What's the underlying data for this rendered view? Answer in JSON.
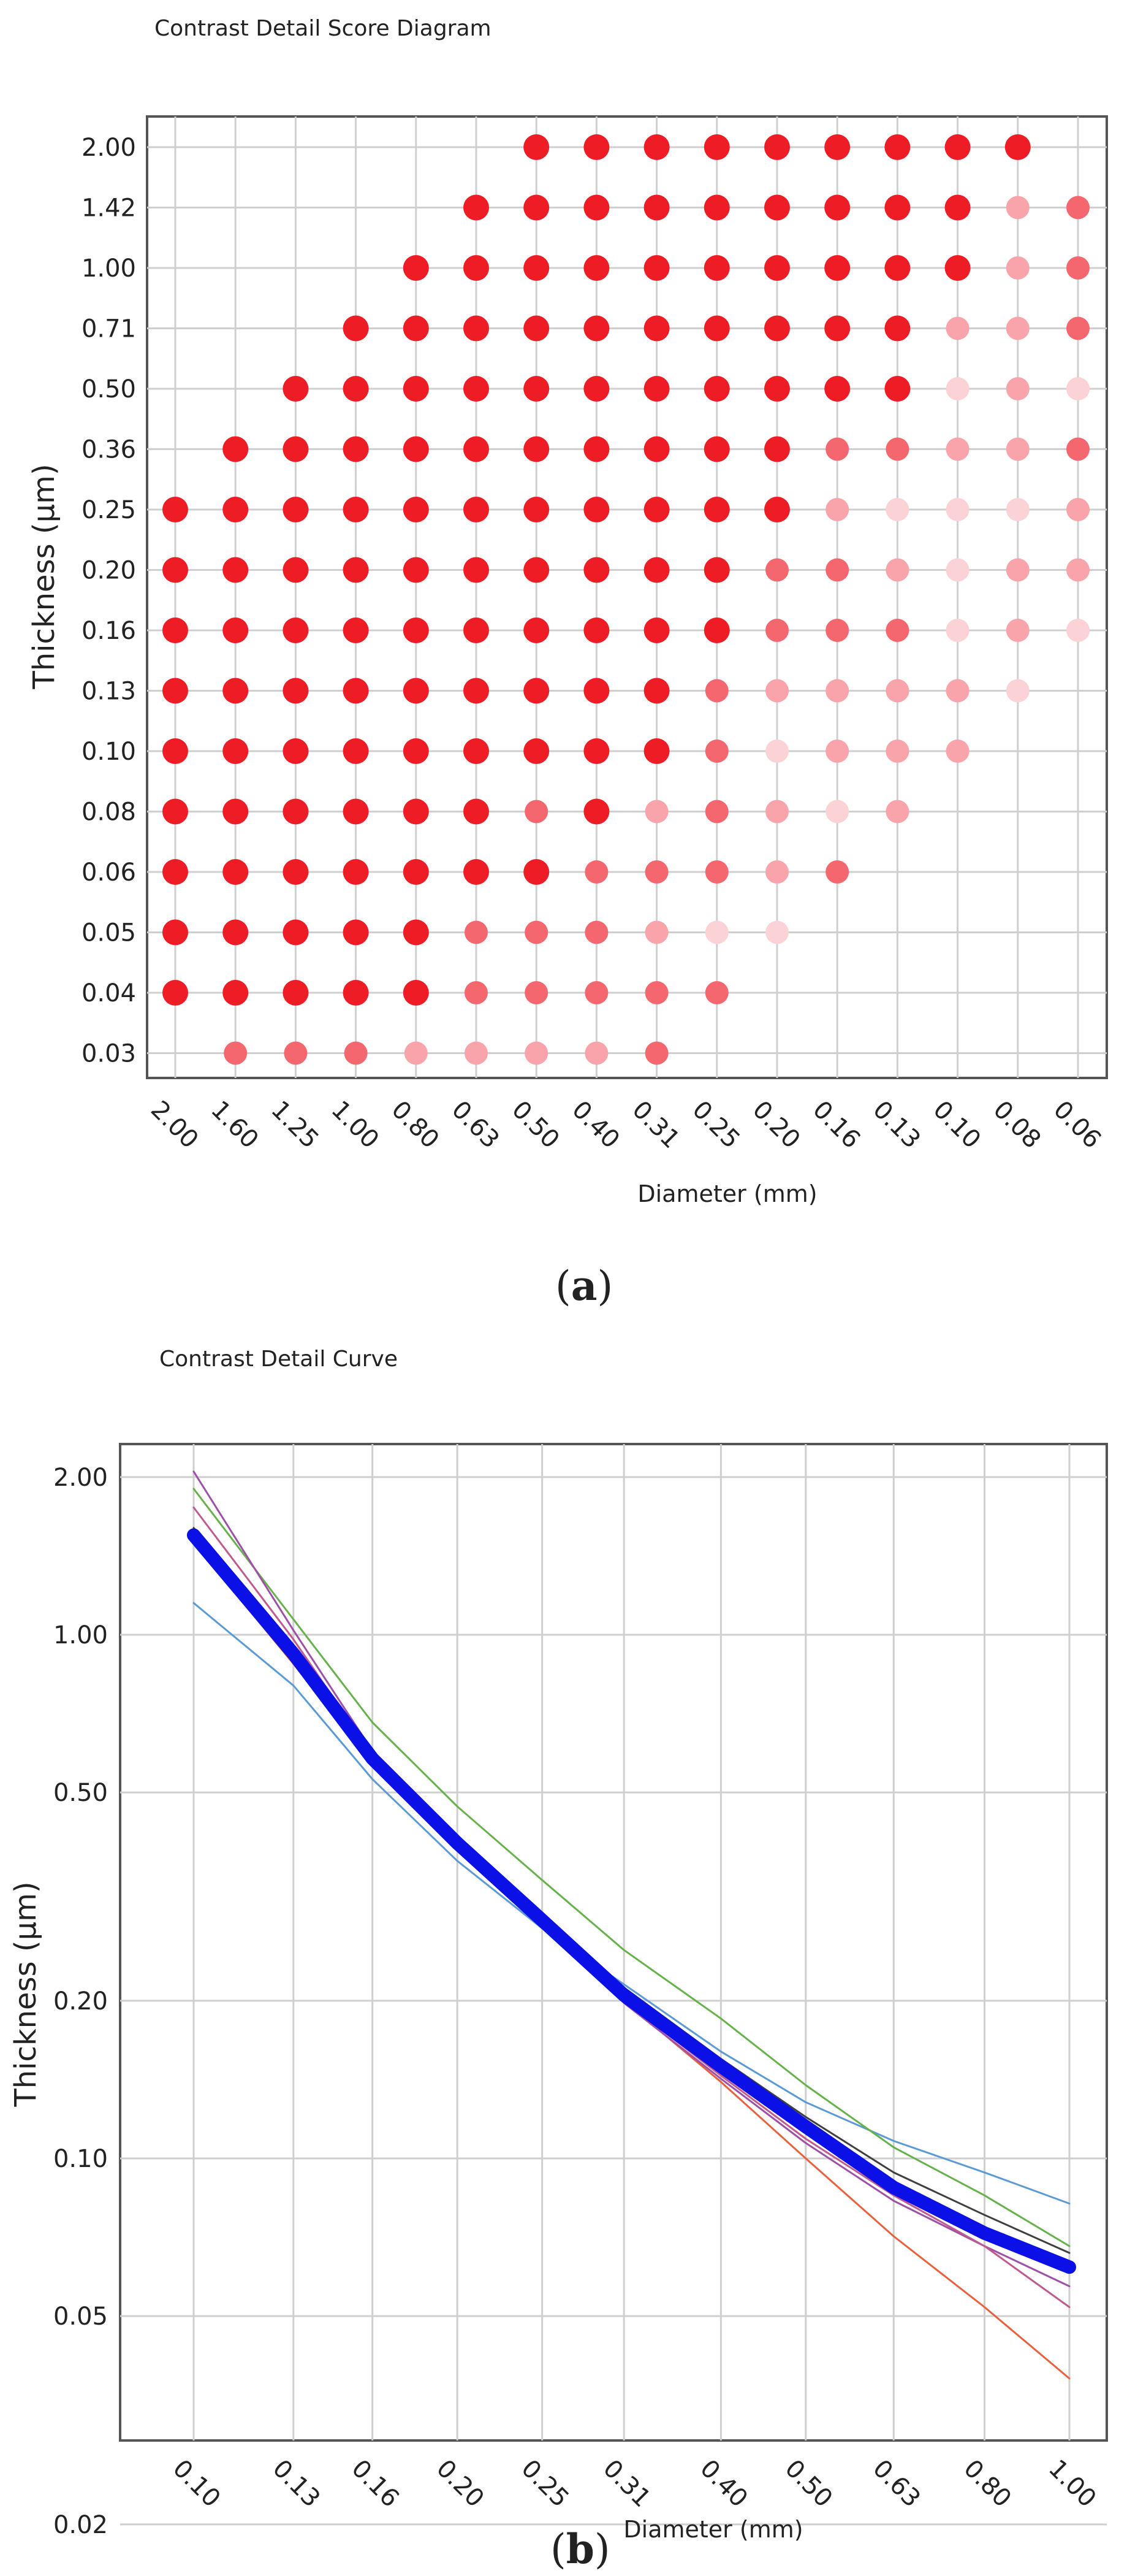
{
  "chart_data": [
    {
      "type": "scatter",
      "panel": "a",
      "title": "Contrast Detail Score Diagram",
      "xlabel": "Diameter (mm)",
      "ylabel": "Thickness (µm)",
      "x_ticks": [
        "2.00",
        "1.60",
        "1.25",
        "1.00",
        "0.80",
        "0.63",
        "0.50",
        "0.40",
        "0.31",
        "0.25",
        "0.20",
        "0.16",
        "0.13",
        "0.10",
        "0.08",
        "0.06"
      ],
      "y_ticks": [
        "2.00",
        "1.42",
        "1.00",
        "0.71",
        "0.50",
        "0.36",
        "0.25",
        "0.20",
        "0.16",
        "0.13",
        "0.10",
        "0.08",
        "0.06",
        "0.05",
        "0.04",
        "0.03"
      ],
      "grid": true,
      "legend": "none",
      "cell_value_meaning": "0 = empty, 1 = faint pink, 2 = light pink, 3 = medium red, 4 = full red",
      "colors": {
        "1": "#fbd2d6",
        "2": "#f9a3aa",
        "3": "#f4676f",
        "4": "#ee1c25"
      },
      "grid_values": [
        [
          0,
          0,
          0,
          0,
          0,
          0,
          4,
          4,
          4,
          4,
          4,
          4,
          4,
          4,
          4,
          0
        ],
        [
          0,
          0,
          0,
          0,
          0,
          4,
          4,
          4,
          4,
          4,
          4,
          4,
          4,
          4,
          2,
          3
        ],
        [
          0,
          0,
          0,
          0,
          4,
          4,
          4,
          4,
          4,
          4,
          4,
          4,
          4,
          4,
          2,
          3
        ],
        [
          0,
          0,
          0,
          4,
          4,
          4,
          4,
          4,
          4,
          4,
          4,
          4,
          4,
          2,
          2,
          3
        ],
        [
          0,
          0,
          4,
          4,
          4,
          4,
          4,
          4,
          4,
          4,
          4,
          4,
          4,
          1,
          2,
          1
        ],
        [
          0,
          4,
          4,
          4,
          4,
          4,
          4,
          4,
          4,
          4,
          4,
          3,
          3,
          2,
          2,
          3
        ],
        [
          4,
          4,
          4,
          4,
          4,
          4,
          4,
          4,
          4,
          4,
          4,
          2,
          1,
          1,
          1,
          2
        ],
        [
          4,
          4,
          4,
          4,
          4,
          4,
          4,
          4,
          4,
          4,
          3,
          3,
          2,
          1,
          2,
          2
        ],
        [
          4,
          4,
          4,
          4,
          4,
          4,
          4,
          4,
          4,
          4,
          3,
          3,
          3,
          1,
          2,
          1
        ],
        [
          4,
          4,
          4,
          4,
          4,
          4,
          4,
          4,
          4,
          3,
          2,
          2,
          2,
          2,
          1,
          0
        ],
        [
          4,
          4,
          4,
          4,
          4,
          4,
          4,
          4,
          4,
          3,
          1,
          2,
          2,
          2,
          0,
          0
        ],
        [
          4,
          4,
          4,
          4,
          4,
          4,
          3,
          4,
          2,
          3,
          2,
          1,
          2,
          0,
          0,
          0
        ],
        [
          4,
          4,
          4,
          4,
          4,
          4,
          4,
          3,
          3,
          3,
          2,
          3,
          0,
          0,
          0,
          0
        ],
        [
          4,
          4,
          4,
          4,
          4,
          3,
          3,
          3,
          2,
          1,
          1,
          0,
          0,
          0,
          0,
          0
        ],
        [
          4,
          4,
          4,
          4,
          4,
          3,
          3,
          3,
          3,
          3,
          0,
          0,
          0,
          0,
          0,
          0
        ],
        [
          0,
          3,
          3,
          3,
          2,
          2,
          2,
          2,
          3,
          0,
          0,
          0,
          0,
          0,
          0,
          0
        ]
      ]
    },
    {
      "type": "line",
      "panel": "b",
      "title": "Contrast Detail Curve",
      "xlabel": "Diameter (mm)",
      "ylabel": "Thickness (µm)",
      "x_scale": "log",
      "y_scale": "log",
      "x_ticks": [
        "0.10",
        "0.13",
        "0.16",
        "0.20",
        "0.25",
        "0.31",
        "0.40",
        "0.50",
        "0.63",
        "0.80",
        "1.00"
      ],
      "y_ticks": [
        "2.00",
        "1.00",
        "0.50",
        "0.20",
        "0.10",
        "0.05",
        "0.02"
      ],
      "ylim": [
        0.015,
        4.5
      ],
      "grid": true,
      "legend": "none",
      "x": [
        0.1,
        0.13,
        0.16,
        0.2,
        0.25,
        0.31,
        0.4,
        0.5,
        0.63,
        0.8,
        1.0
      ],
      "series": [
        {
          "color": "#0a10e6",
          "width": 22,
          "values": [
            1.55,
            0.92,
            0.58,
            0.4,
            0.285,
            0.205,
            0.15,
            0.115,
            0.088,
            0.072,
            0.062
          ]
        },
        {
          "color": "#5b9bd5",
          "width": 3,
          "values": [
            1.15,
            0.8,
            0.53,
            0.37,
            0.275,
            0.215,
            0.16,
            0.128,
            0.108,
            0.094,
            0.082
          ]
        },
        {
          "color": "#66b24a",
          "width": 3,
          "values": [
            1.9,
            1.07,
            0.68,
            0.47,
            0.34,
            0.25,
            0.185,
            0.138,
            0.105,
            0.085,
            0.068
          ]
        },
        {
          "color": "#e8603c",
          "width": 3,
          "values": [
            1.5,
            0.88,
            0.57,
            0.39,
            0.28,
            0.2,
            0.14,
            0.1,
            0.071,
            0.052,
            0.038
          ]
        },
        {
          "color": "#9e4fa8",
          "width": 3,
          "values": [
            2.05,
            1.02,
            0.6,
            0.4,
            0.28,
            0.198,
            0.142,
            0.107,
            0.083,
            0.068,
            0.057
          ]
        },
        {
          "color": "#c05a8e",
          "width": 3,
          "values": [
            1.75,
            0.98,
            0.59,
            0.4,
            0.282,
            0.2,
            0.144,
            0.109,
            0.085,
            0.068,
            0.052
          ]
        },
        {
          "color": "#3f3f3f",
          "width": 3,
          "values": [
            1.6,
            0.94,
            0.59,
            0.41,
            0.29,
            0.212,
            0.155,
            0.12,
            0.094,
            0.078,
            0.066
          ]
        }
      ]
    }
  ]
}
